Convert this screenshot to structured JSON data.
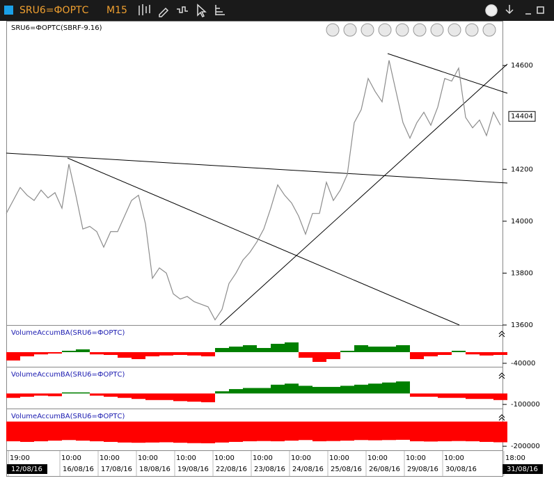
{
  "window": {
    "symbol": "SRU6=ФОРТС",
    "timeframe": "M15"
  },
  "chart_data": [
    {
      "type": "line",
      "title": "SRU6=ФОРТС(SBRF-9.16)",
      "color": "#8c8c8c",
      "values": [
        14030,
        14080,
        14130,
        14100,
        14080,
        14120,
        14090,
        14110,
        14050,
        14220,
        14100,
        13970,
        13980,
        13960,
        13900,
        13960,
        13960,
        14020,
        14080,
        14100,
        13990,
        13780,
        13820,
        13800,
        13720,
        13700,
        13710,
        13690,
        13680,
        13670,
        13620,
        13660,
        13760,
        13800,
        13850,
        13880,
        13920,
        13970,
        14050,
        14140,
        14100,
        14070,
        14020,
        13950,
        14030,
        14030,
        14150,
        14080,
        14120,
        14180,
        14380,
        14430,
        14550,
        14500,
        14460,
        14620,
        14500,
        14380,
        14320,
        14380,
        14420,
        14370,
        14440,
        14550,
        14540,
        14590,
        14400,
        14360,
        14390,
        14330,
        14420,
        14370
      ],
      "ylim": [
        13600,
        14772
      ],
      "yticks": [
        13600,
        13800,
        14000,
        14200,
        14600
      ],
      "last_price": 14404
    },
    {
      "type": "bar",
      "title": "VolumeAccumBA(SRU6=ФОРТС)",
      "up_color": "#008000",
      "down_color": "#ff0000",
      "values": [
        -30000,
        -15000,
        -8000,
        -5000,
        5000,
        10000,
        -8000,
        -10000,
        -20000,
        -25000,
        -15000,
        -12000,
        -10000,
        -12000,
        -15000,
        15000,
        20000,
        25000,
        15000,
        30000,
        35000,
        -20000,
        -35000,
        -25000,
        5000,
        25000,
        20000,
        20000,
        25000,
        -25000,
        -15000,
        -10000,
        5000,
        -8000,
        -12000,
        -10000
      ],
      "ylim": [
        -52500,
        95000
      ],
      "yticks": [
        -40000
      ]
    },
    {
      "type": "bar",
      "title": "VolumeAccumBA(SRU6=ФОРТС)",
      "up_color": "#008000",
      "down_color": "#ff0000",
      "values": [
        -40000,
        -30000,
        -20000,
        -25000,
        10000,
        10000,
        -20000,
        -30000,
        -40000,
        -50000,
        -60000,
        -60000,
        -70000,
        -75000,
        -80000,
        20000,
        40000,
        50000,
        50000,
        80000,
        90000,
        70000,
        60000,
        60000,
        70000,
        80000,
        90000,
        100000,
        110000,
        -30000,
        -30000,
        -40000,
        -40000,
        -50000,
        -50000,
        -60000
      ],
      "ylim": [
        -137500,
        237500
      ],
      "yticks": [
        -100000
      ]
    },
    {
      "type": "bar",
      "title": "VolumeAccumBA(SRU6=ФОРТС)",
      "up_color": "#008000",
      "down_color": "#ff0000",
      "values": [
        -160000,
        -165000,
        -160000,
        -155000,
        -150000,
        -155000,
        -160000,
        -165000,
        -170000,
        -172000,
        -170000,
        -168000,
        -172000,
        -175000,
        -176000,
        -170000,
        -165000,
        -160000,
        -158000,
        -160000,
        -155000,
        -150000,
        -160000,
        -158000,
        -155000,
        -150000,
        -152000,
        -150000,
        -148000,
        -160000,
        -162000,
        -160000,
        -158000,
        -160000,
        -165000,
        -168000
      ],
      "ylim": [
        -233000,
        100000
      ],
      "yticks": [
        -200000
      ]
    }
  ],
  "time_axis": {
    "times": [
      "19:00",
      "10:00",
      "10:00",
      "10:00",
      "10:00",
      "10:00",
      "10:00",
      "10:00",
      "10:00",
      "10:00",
      "10:00",
      "10:00",
      "18:00"
    ],
    "dates": [
      "12/08/16",
      "16/08/16",
      "17/08/16",
      "18/08/16",
      "19/08/16",
      "22/08/16",
      "23/08/16",
      "24/08/16",
      "25/08/16",
      "26/08/16",
      "29/08/16",
      "30/08/16",
      "31/08/16"
    ]
  }
}
